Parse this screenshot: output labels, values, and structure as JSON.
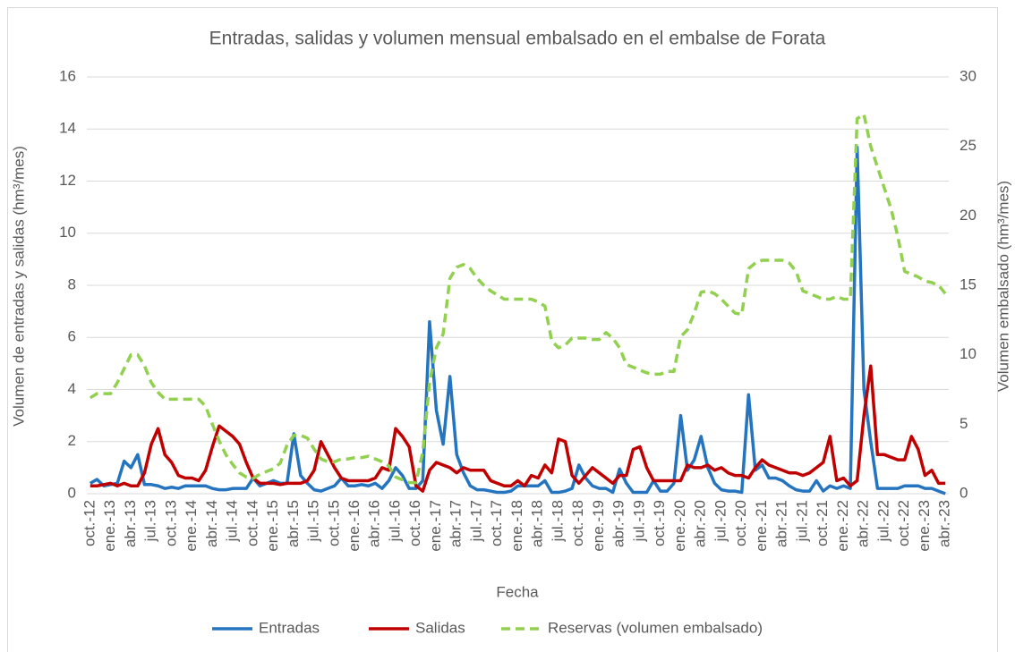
{
  "chart_data": {
    "type": "line",
    "title": "Entradas, salidas y volumen mensual embalsado en el embalse de Forata",
    "x_label": "Fecha",
    "y_label": "Volumen de entradas y salidas (hm³/mes)",
    "y2_label": "Volumen embalsado (hm³/mes)",
    "categories": [
      "oct.-12",
      null,
      null,
      "ene.-13",
      null,
      null,
      "abr.-13",
      null,
      null,
      "jul.-13",
      null,
      null,
      "oct.-13",
      null,
      null,
      "ene.-14",
      null,
      null,
      "abr.-14",
      null,
      null,
      "jul.-14",
      null,
      null,
      "oct.-14",
      null,
      null,
      "ene.-15",
      null,
      null,
      "abr.-15",
      null,
      null,
      "jul.-15",
      null,
      null,
      "oct.-15",
      null,
      null,
      "ene.-16",
      null,
      null,
      "abr.-16",
      null,
      null,
      "jul.-16",
      null,
      null,
      "oct.-16",
      null,
      null,
      "ene.-17",
      null,
      null,
      "abr.-17",
      null,
      null,
      "jul.-17",
      null,
      null,
      "oct.-17",
      null,
      null,
      "ene.-18",
      null,
      null,
      "abr.-18",
      null,
      null,
      "jul.-18",
      null,
      null,
      "oct.-18",
      null,
      null,
      "ene.-19",
      null,
      null,
      "abr.-19",
      null,
      null,
      "jul.-19",
      null,
      null,
      "oct.-19",
      null,
      null,
      "ene.-20",
      null,
      null,
      "abr.-20",
      null,
      null,
      "jul.-20",
      null,
      null,
      "oct.-20",
      null,
      null,
      "ene.-21",
      null,
      null,
      "abr.-21",
      null,
      null,
      "jul.-21",
      null,
      null,
      "oct.-21",
      null,
      null,
      "ene.-22",
      null,
      null,
      "abr.-22",
      null,
      null,
      "jul.-22",
      null,
      null,
      "oct.-22",
      null,
      null,
      "ene.-23",
      null,
      null,
      "abr.-23"
    ],
    "series": [
      {
        "name": "Entradas",
        "color": "#2474c0",
        "style": "solid",
        "values": [
          0.4,
          0.55,
          0.3,
          0.35,
          0.4,
          1.25,
          1.0,
          1.5,
          0.35,
          0.35,
          0.3,
          0.2,
          0.25,
          0.2,
          0.3,
          0.3,
          0.3,
          0.3,
          0.2,
          0.15,
          0.15,
          0.2,
          0.2,
          0.2,
          0.6,
          0.3,
          0.4,
          0.5,
          0.4,
          0.4,
          2.3,
          0.7,
          0.4,
          0.15,
          0.1,
          0.2,
          0.3,
          0.6,
          0.3,
          0.3,
          0.35,
          0.3,
          0.4,
          0.2,
          0.5,
          1.0,
          0.7,
          0.2,
          0.2,
          0.5,
          6.6,
          3.2,
          1.9,
          4.5,
          1.5,
          0.8,
          0.3,
          0.15,
          0.15,
          0.1,
          0.05,
          0.05,
          0.1,
          0.3,
          0.3,
          0.3,
          0.3,
          0.5,
          0.05,
          0.05,
          0.1,
          0.2,
          1.1,
          0.6,
          0.3,
          0.2,
          0.2,
          0.05,
          0.95,
          0.4,
          0.05,
          0.05,
          0.05,
          0.5,
          0.1,
          0.1,
          0.4,
          3.0,
          0.9,
          1.3,
          2.2,
          1.0,
          0.4,
          0.15,
          0.1,
          0.1,
          0.05,
          3.8,
          0.9,
          1.1,
          0.6,
          0.6,
          0.5,
          0.3,
          0.15,
          0.1,
          0.1,
          0.5,
          0.1,
          0.3,
          0.2,
          0.3,
          0.2,
          13.3,
          4.0,
          2.0,
          0.2,
          0.2,
          0.2,
          0.2,
          0.3,
          0.3,
          0.3,
          0.2,
          0.2,
          0.1,
          0.0
        ]
      },
      {
        "name": "Salidas",
        "color": "#c00000",
        "style": "solid",
        "values": [
          0.3,
          0.3,
          0.35,
          0.4,
          0.3,
          0.4,
          0.3,
          0.3,
          0.8,
          1.9,
          2.5,
          1.5,
          1.2,
          0.7,
          0.6,
          0.6,
          0.5,
          0.9,
          1.8,
          2.6,
          2.4,
          2.2,
          1.9,
          1.2,
          0.6,
          0.4,
          0.4,
          0.4,
          0.35,
          0.4,
          0.4,
          0.4,
          0.5,
          0.9,
          2.0,
          1.5,
          1.0,
          0.6,
          0.5,
          0.5,
          0.5,
          0.5,
          0.6,
          1.0,
          0.9,
          2.5,
          2.2,
          1.8,
          0.3,
          0.1,
          0.9,
          1.2,
          1.1,
          1.0,
          0.8,
          1.0,
          0.9,
          0.9,
          0.9,
          0.5,
          0.4,
          0.3,
          0.3,
          0.5,
          0.3,
          0.7,
          0.6,
          1.1,
          0.8,
          2.1,
          2.0,
          0.7,
          0.4,
          0.7,
          1.0,
          0.8,
          0.6,
          0.4,
          0.7,
          0.7,
          1.7,
          1.8,
          1.0,
          0.5,
          0.5,
          0.5,
          0.5,
          0.5,
          1.1,
          1.0,
          1.0,
          1.1,
          0.9,
          1.0,
          0.8,
          0.7,
          0.7,
          0.6,
          1.0,
          1.3,
          1.1,
          1.0,
          0.9,
          0.8,
          0.8,
          0.7,
          0.8,
          1.0,
          1.2,
          2.2,
          0.5,
          0.6,
          0.3,
          0.5,
          3.0,
          4.9,
          1.5,
          1.5,
          1.4,
          1.3,
          1.3,
          2.2,
          1.7,
          0.7,
          0.9,
          0.4,
          0.4
        ]
      },
      {
        "name": "Reservas (volumen embalsado)",
        "color": "#92d050",
        "style": "dashed",
        "axis": "y2",
        "values": [
          6.9,
          7.2,
          7.2,
          7.2,
          8.0,
          9.0,
          10.0,
          10.0,
          9.2,
          8.0,
          7.3,
          6.8,
          6.8,
          6.8,
          6.8,
          6.8,
          6.8,
          6.3,
          5.0,
          3.8,
          2.8,
          2.1,
          1.5,
          1.2,
          1.1,
          1.4,
          1.6,
          1.8,
          2.2,
          3.5,
          4.2,
          4.2,
          4.0,
          3.2,
          2.5,
          2.3,
          2.3,
          2.5,
          2.5,
          2.6,
          2.6,
          2.7,
          2.5,
          2.3,
          2.0,
          1.2,
          1.0,
          0.8,
          0.8,
          3.0,
          8.0,
          10.5,
          11.5,
          15.5,
          16.3,
          16.5,
          16.2,
          15.5,
          15.0,
          14.6,
          14.3,
          14.0,
          14.0,
          14.0,
          14.0,
          14.0,
          13.8,
          13.5,
          11.0,
          10.5,
          10.7,
          11.2,
          11.2,
          11.2,
          11.1,
          11.1,
          11.6,
          11.2,
          10.5,
          9.3,
          9.1,
          8.9,
          8.7,
          8.6,
          8.6,
          8.8,
          8.8,
          11.3,
          11.8,
          13.0,
          14.5,
          14.6,
          14.4,
          14.0,
          13.5,
          13.0,
          12.9,
          16.2,
          16.6,
          16.8,
          16.8,
          16.8,
          16.8,
          16.6,
          16.0,
          14.6,
          14.4,
          14.2,
          14.0,
          14.0,
          14.2,
          14.0,
          14.0,
          27.0,
          27.3,
          25.0,
          23.5,
          22.0,
          20.5,
          18.5,
          16.0,
          15.8,
          15.6,
          15.3,
          15.2,
          15.0,
          14.4
        ]
      }
    ],
    "ylim": [
      0,
      16
    ],
    "yticks": [
      0,
      2,
      4,
      6,
      8,
      10,
      12,
      14,
      16
    ],
    "y2lim": [
      0,
      30
    ],
    "y2ticks": [
      0,
      5,
      10,
      15,
      20,
      25,
      30
    ],
    "grid": true,
    "legend": "bottom"
  }
}
